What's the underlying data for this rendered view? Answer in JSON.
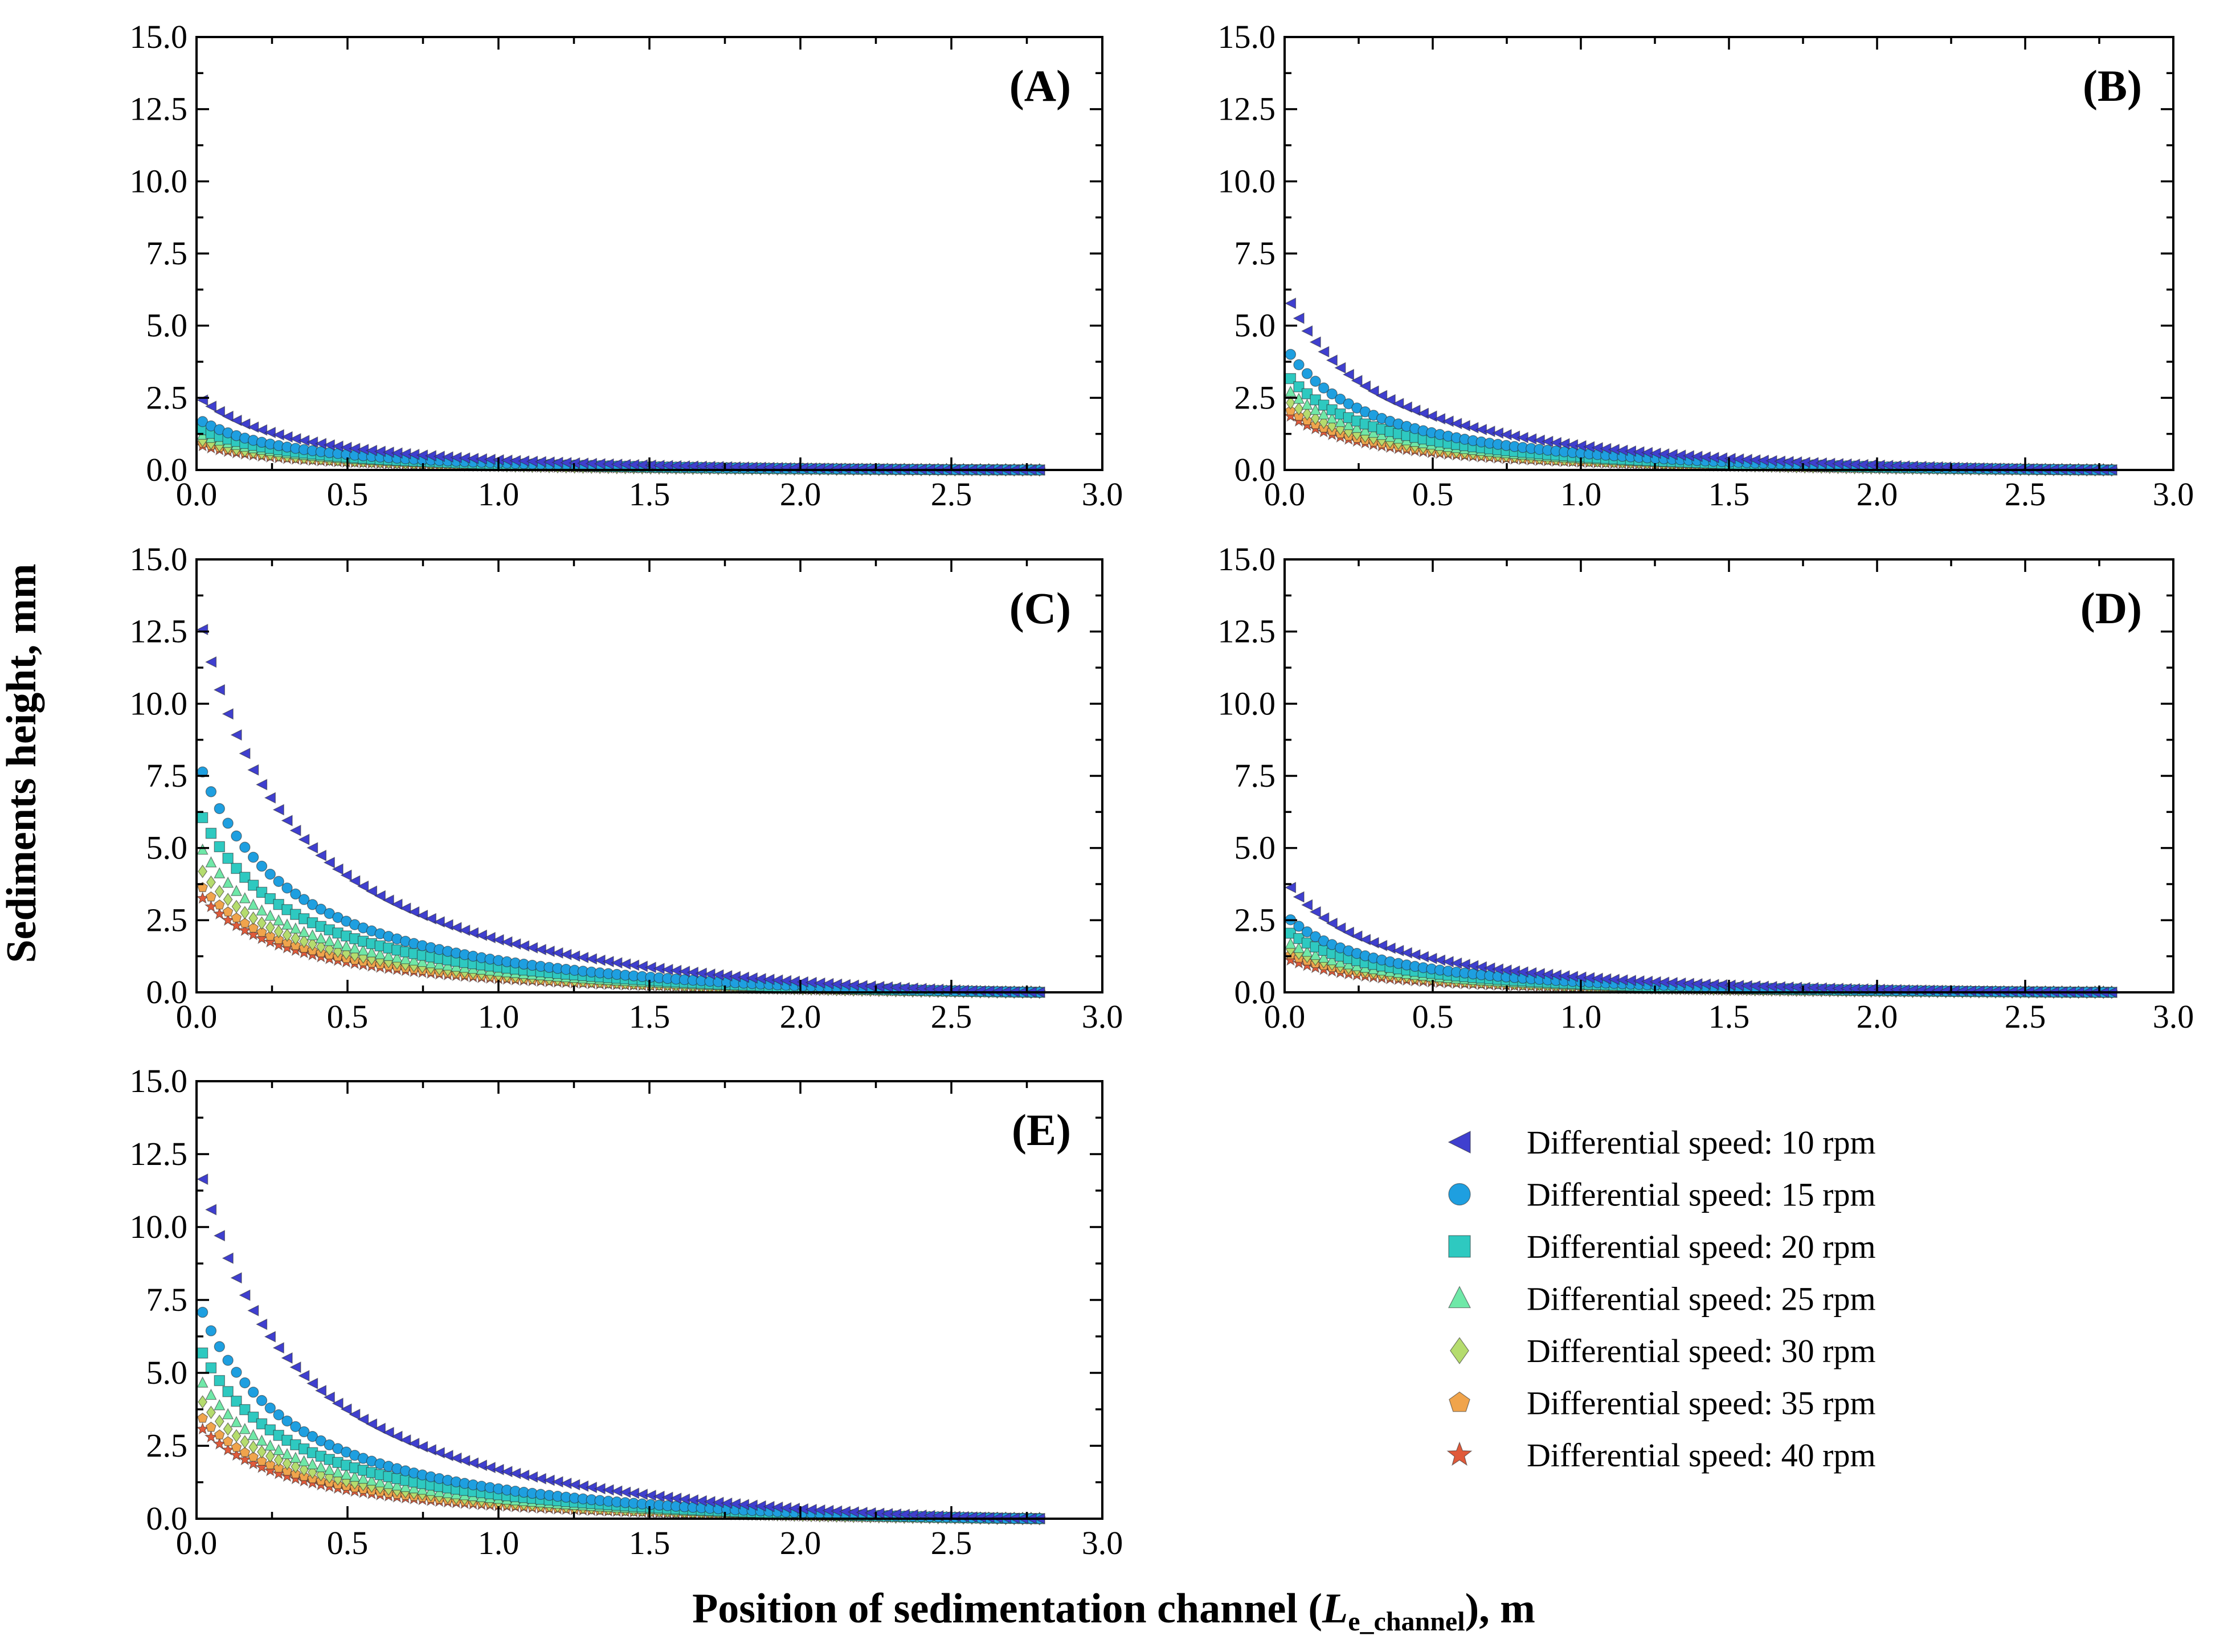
{
  "chart_data": {
    "type": "scatter",
    "layout": "3x2 grid of panels, legend in lower-right cell",
    "xlabel_prefix": "Position of sedimentation channel (",
    "xlabel_var": "L",
    "xlabel_sub": "e_channel",
    "xlabel_suffix": "), m",
    "ylabel": "Sediments height, mm",
    "xlim": [
      0,
      3.0
    ],
    "ylim": [
      0,
      15.0
    ],
    "x_ticks": [
      "0.0",
      "0.5",
      "1.0",
      "1.5",
      "2.0",
      "2.5",
      "3.0"
    ],
    "y_ticks": [
      "0.0",
      "2.5",
      "5.0",
      "7.5",
      "10.0",
      "12.5",
      "15.0"
    ],
    "x_max_data": 2.8,
    "series": [
      {
        "name": "Differential speed: 10 rpm",
        "rpm": 10,
        "marker": "triangle-left",
        "color": "#3f3fcf"
      },
      {
        "name": "Differential speed: 15 rpm",
        "rpm": 15,
        "marker": "circle",
        "color": "#1e9fe0"
      },
      {
        "name": "Differential speed: 20 rpm",
        "rpm": 20,
        "marker": "square",
        "color": "#2ec9c0"
      },
      {
        "name": "Differential speed: 25 rpm",
        "rpm": 25,
        "marker": "triangle-up",
        "color": "#6fe8a8"
      },
      {
        "name": "Differential speed: 30 rpm",
        "rpm": 30,
        "marker": "diamond",
        "color": "#b5dc6e"
      },
      {
        "name": "Differential speed: 35 rpm",
        "rpm": 35,
        "marker": "pentagon",
        "color": "#f0a44c"
      },
      {
        "name": "Differential speed: 40 rpm",
        "rpm": 40,
        "marker": "star",
        "color": "#e05a3a"
      }
    ],
    "panels": [
      {
        "label": "(A)",
        "peak_heights": [
          2.6,
          1.8,
          1.5,
          1.3,
          1.1,
          1.0,
          0.9
        ]
      },
      {
        "label": "(B)",
        "peak_heights": [
          6.2,
          4.3,
          3.4,
          2.9,
          2.5,
          2.2,
          2.0
        ]
      },
      {
        "label": "(C)",
        "peak_heights": [
          13.5,
          8.2,
          6.5,
          5.3,
          4.5,
          3.9,
          3.5
        ]
      },
      {
        "label": "(D)",
        "peak_heights": [
          3.9,
          2.7,
          2.2,
          1.8,
          1.6,
          1.4,
          1.2
        ]
      },
      {
        "label": "(E)",
        "peak_heights": [
          12.5,
          7.6,
          6.1,
          5.0,
          4.3,
          3.7,
          3.3
        ]
      }
    ],
    "curve_model": "h(x) = peak * ((2.82 - x) / 2.82)^1.3 / (1 + 3.2 x), sampled every 0.028 m from 0.02 to 2.80 m",
    "curve_exponent": 1.3,
    "curve_decay": 3.2,
    "x_end": 2.82
  }
}
